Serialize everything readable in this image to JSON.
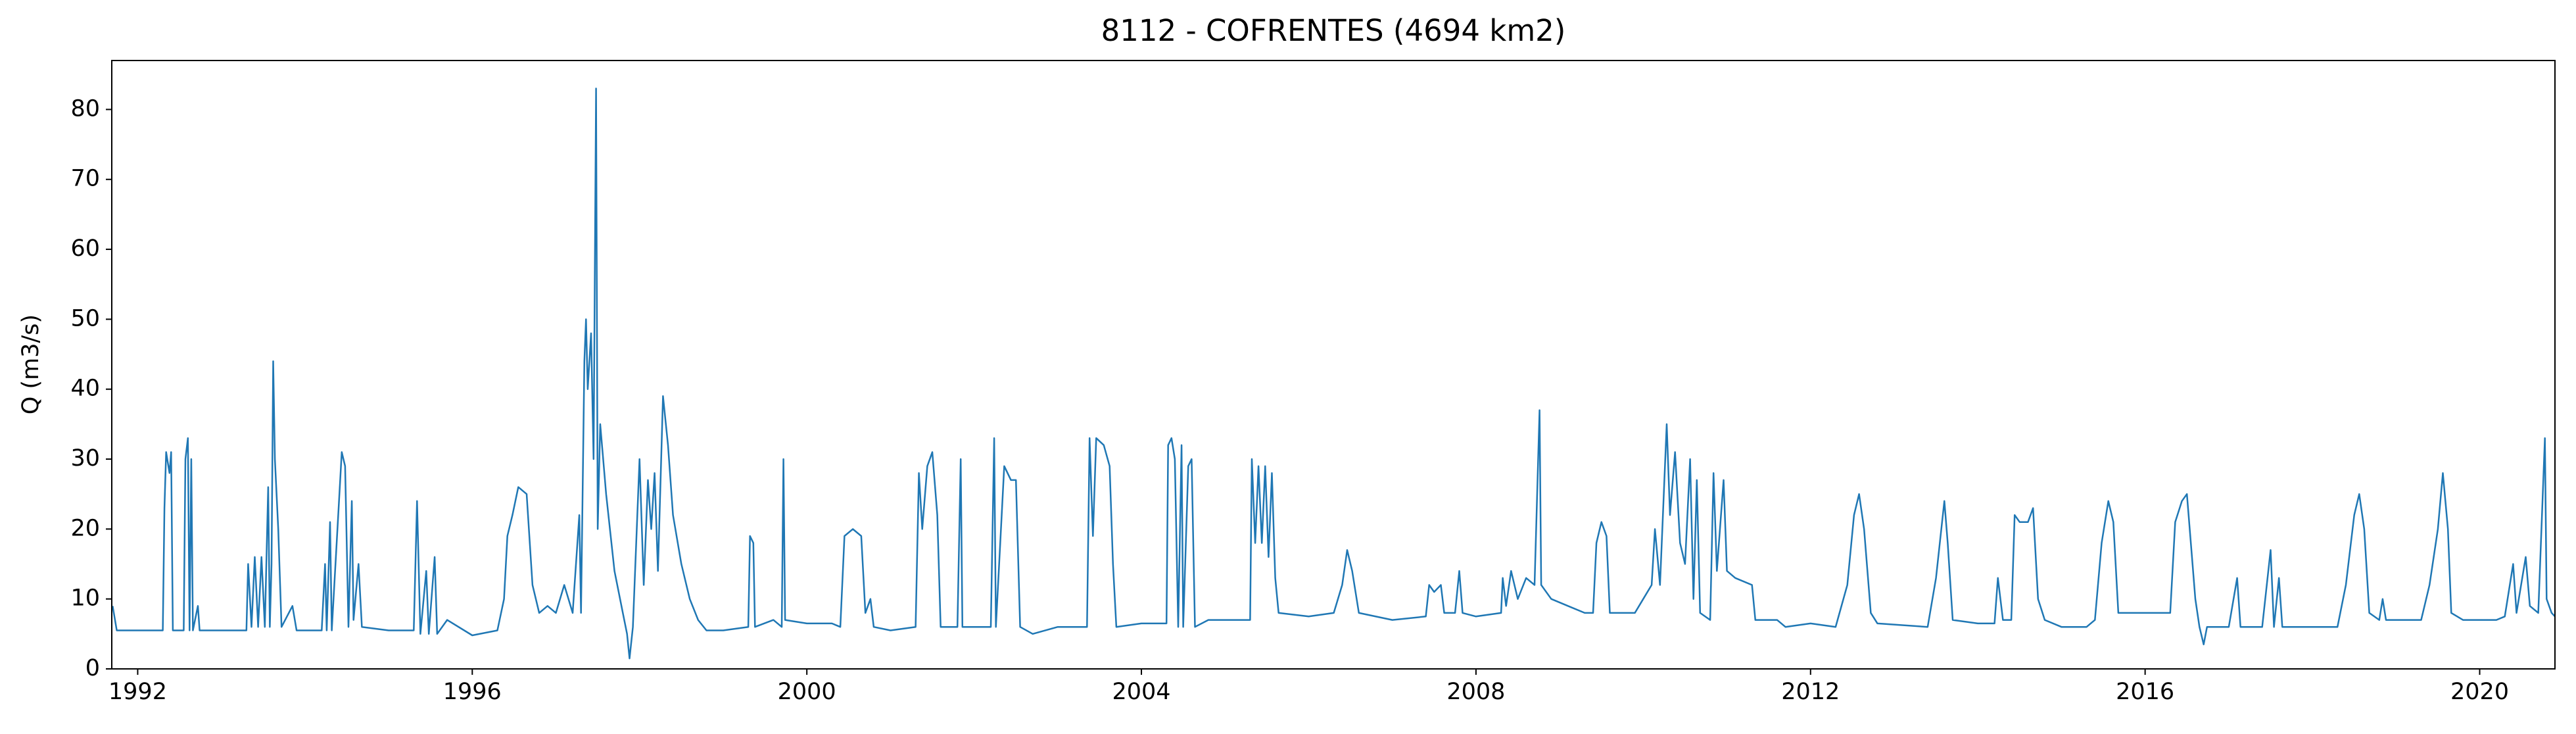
{
  "chart_data": {
    "type": "line",
    "title": "8112 - COFRENTES (4694 km2)",
    "ylabel": "Q (m3/s)",
    "color": "#1f77b4",
    "x": [
      1991.7,
      1991.75,
      1992.0,
      1992.3,
      1992.32,
      1992.34,
      1992.38,
      1992.4,
      1992.42,
      1992.55,
      1992.57,
      1992.6,
      1992.62,
      1992.64,
      1992.66,
      1992.72,
      1992.74,
      1993.3,
      1993.32,
      1993.36,
      1993.4,
      1993.44,
      1993.48,
      1993.52,
      1993.56,
      1993.58,
      1993.6,
      1993.62,
      1993.64,
      1993.68,
      1993.72,
      1993.85,
      1993.9,
      1994.2,
      1994.24,
      1994.26,
      1994.3,
      1994.32,
      1994.44,
      1994.48,
      1994.52,
      1994.56,
      1994.58,
      1994.64,
      1994.68,
      1995.0,
      1995.3,
      1995.34,
      1995.38,
      1995.45,
      1995.48,
      1995.55,
      1995.58,
      1995.7,
      1996.0,
      1996.3,
      1996.38,
      1996.42,
      1996.48,
      1996.55,
      1996.65,
      1996.72,
      1996.8,
      1996.9,
      1997.0,
      1997.1,
      1997.2,
      1997.28,
      1997.3,
      1997.34,
      1997.36,
      1997.38,
      1997.42,
      1997.45,
      1997.48,
      1997.5,
      1997.53,
      1997.6,
      1997.7,
      1997.8,
      1997.85,
      1997.88,
      1997.92,
      1998.0,
      1998.05,
      1998.1,
      1998.14,
      1998.18,
      1998.22,
      1998.28,
      1998.34,
      1998.4,
      1998.5,
      1998.6,
      1998.7,
      1998.8,
      1999.0,
      1999.3,
      1999.32,
      1999.36,
      1999.38,
      1999.6,
      1999.7,
      1999.72,
      1999.74,
      2000.0,
      2000.3,
      2000.4,
      2000.45,
      2000.55,
      2000.65,
      2000.7,
      2000.76,
      2000.8,
      2001.0,
      2001.3,
      2001.34,
      2001.38,
      2001.44,
      2001.5,
      2001.56,
      2001.6,
      2001.8,
      2001.84,
      2001.86,
      2002.0,
      2002.2,
      2002.24,
      2002.26,
      2002.36,
      2002.44,
      2002.5,
      2002.55,
      2002.7,
      2003.0,
      2003.35,
      2003.38,
      2003.42,
      2003.46,
      2003.55,
      2003.62,
      2003.66,
      2003.7,
      2004.0,
      2004.3,
      2004.32,
      2004.36,
      2004.4,
      2004.44,
      2004.48,
      2004.5,
      2004.56,
      2004.6,
      2004.64,
      2004.8,
      2005.0,
      2005.3,
      2005.32,
      2005.36,
      2005.4,
      2005.44,
      2005.48,
      2005.52,
      2005.56,
      2005.6,
      2005.64,
      2006.0,
      2006.3,
      2006.4,
      2006.46,
      2006.52,
      2006.6,
      2007.0,
      2007.4,
      2007.44,
      2007.5,
      2007.58,
      2007.62,
      2007.75,
      2007.8,
      2007.84,
      2008.0,
      2008.3,
      2008.32,
      2008.36,
      2008.42,
      2008.5,
      2008.6,
      2008.7,
      2008.76,
      2008.78,
      2008.9,
      2009.1,
      2009.3,
      2009.4,
      2009.44,
      2009.5,
      2009.56,
      2009.6,
      2009.9,
      2010.0,
      2010.1,
      2010.14,
      2010.2,
      2010.28,
      2010.32,
      2010.38,
      2010.44,
      2010.5,
      2010.56,
      2010.6,
      2010.64,
      2010.68,
      2010.8,
      2010.84,
      2010.88,
      2010.96,
      2011.0,
      2011.1,
      2011.3,
      2011.34,
      2011.6,
      2011.7,
      2012.0,
      2012.3,
      2012.44,
      2012.52,
      2012.58,
      2012.64,
      2012.72,
      2012.8,
      2013.4,
      2013.5,
      2013.6,
      2013.64,
      2013.7,
      2014.0,
      2014.2,
      2014.24,
      2014.3,
      2014.4,
      2014.44,
      2014.5,
      2014.6,
      2014.66,
      2014.72,
      2014.8,
      2015.0,
      2015.3,
      2015.4,
      2015.48,
      2015.56,
      2015.62,
      2015.68,
      2015.8,
      2016.0,
      2016.3,
      2016.36,
      2016.44,
      2016.5,
      2016.56,
      2016.6,
      2016.65,
      2016.7,
      2016.74,
      2016.9,
      2017.0,
      2017.1,
      2017.14,
      2017.4,
      2017.5,
      2017.54,
      2017.6,
      2017.64,
      2018.0,
      2018.3,
      2018.4,
      2018.5,
      2018.56,
      2018.62,
      2018.68,
      2018.8,
      2018.84,
      2018.88,
      2019.0,
      2019.3,
      2019.4,
      2019.5,
      2019.56,
      2019.62,
      2019.66,
      2019.8,
      2020.0,
      2020.2,
      2020.3,
      2020.4,
      2020.44,
      2020.55,
      2020.6,
      2020.7,
      2020.78,
      2020.8,
      2020.86,
      2020.9
    ],
    "values": [
      9,
      5.5,
      5.5,
      5.5,
      23,
      31,
      28,
      31,
      5.5,
      5.5,
      30,
      33,
      5.5,
      30,
      5.5,
      9,
      5.5,
      5.5,
      15,
      6,
      16,
      6,
      16,
      6,
      26,
      6,
      15,
      44,
      30,
      20,
      6,
      9,
      5.5,
      5.5,
      15,
      5.5,
      21,
      5.5,
      31,
      29,
      6,
      24,
      7,
      15,
      6,
      5.5,
      5.5,
      24,
      5,
      14,
      5,
      16,
      5,
      7,
      4.8,
      5.5,
      10,
      19,
      22,
      26,
      25,
      12,
      8,
      9,
      8,
      12,
      8,
      22,
      8,
      44,
      50,
      40,
      48,
      30,
      83,
      20,
      35,
      25,
      14,
      8,
      5,
      1.5,
      6,
      30,
      12,
      27,
      20,
      28,
      14,
      39,
      32,
      22,
      15,
      10,
      7,
      5.5,
      5.5,
      6,
      19,
      18,
      6,
      7,
      6,
      30,
      7,
      6.5,
      6.5,
      6,
      19,
      20,
      19,
      8,
      10,
      6,
      5.5,
      6,
      28,
      20,
      29,
      31,
      22,
      6,
      6,
      30,
      6,
      6,
      6,
      33,
      6,
      29,
      27,
      27,
      6,
      5,
      6,
      6,
      33,
      19,
      33,
      32,
      29,
      15,
      6,
      6.5,
      6.5,
      32,
      33,
      30,
      6,
      32,
      6,
      29,
      30,
      6,
      7,
      7,
      7,
      30,
      18,
      29,
      18,
      29,
      16,
      28,
      13,
      8,
      7.5,
      8,
      12,
      17,
      14,
      8,
      7,
      7.5,
      12,
      11,
      12,
      8,
      8,
      14,
      8,
      7.5,
      8,
      13,
      9,
      14,
      10,
      13,
      12,
      37,
      12,
      10,
      9,
      8,
      8,
      18,
      21,
      19,
      8,
      8,
      10,
      12,
      20,
      12,
      35,
      22,
      31,
      18,
      15,
      30,
      10,
      27,
      8,
      7,
      28,
      14,
      27,
      14,
      13,
      12,
      7,
      7,
      6,
      6.5,
      6,
      12,
      22,
      25,
      20,
      8,
      6.5,
      6,
      13,
      24,
      18,
      7,
      6.5,
      6.5,
      13,
      7,
      7,
      22,
      21,
      21,
      23,
      10,
      7,
      6,
      6,
      7,
      18,
      24,
      21,
      8,
      8,
      8,
      8,
      21,
      24,
      25,
      16,
      10,
      6,
      3.5,
      6,
      6,
      6,
      13,
      6,
      6,
      17,
      6,
      13,
      6,
      6,
      6,
      12,
      22,
      25,
      20,
      8,
      7,
      10,
      7,
      7,
      7,
      12,
      20,
      28,
      20,
      8,
      7,
      7,
      7,
      7.5,
      15,
      8,
      16,
      9,
      8,
      33,
      10,
      8,
      7.5
    ],
    "xlim": [
      1991.69,
      2020.9
    ],
    "xticks": [
      1992,
      1996,
      2000,
      2004,
      2008,
      2012,
      2016,
      2020
    ],
    "ylim": [
      0,
      87
    ],
    "yticks": [
      0,
      10,
      20,
      30,
      40,
      50,
      60,
      70,
      80
    ]
  }
}
